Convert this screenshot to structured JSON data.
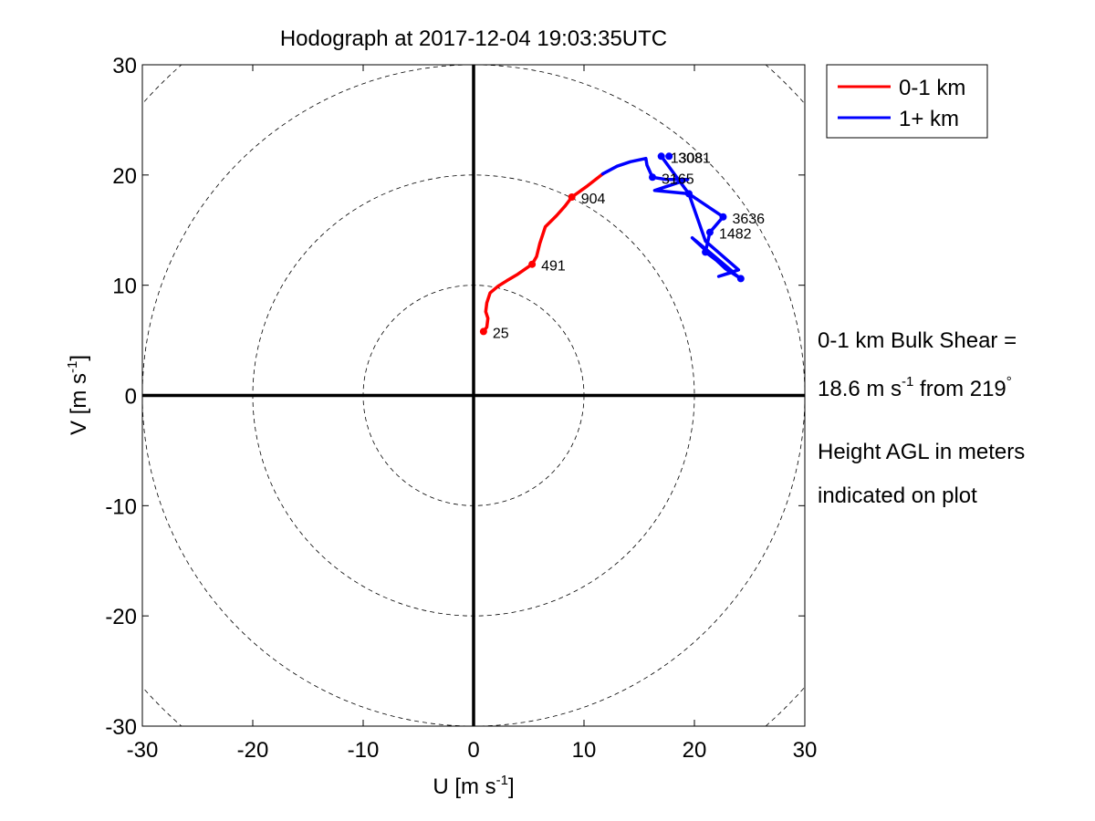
{
  "chart_data": {
    "type": "line",
    "title": "Hodograph at 2017-12-04 19:03:35UTC",
    "xlabel": {
      "main": "U [m s",
      "sup": "-1",
      "close": "]"
    },
    "ylabel": {
      "main": "V [m s",
      "sup": "-1",
      "close": "]"
    },
    "xlim": [
      -30,
      30
    ],
    "ylim": [
      -30,
      30
    ],
    "xticks": [
      "-30",
      "-20",
      "-10",
      "0",
      "10",
      "20",
      "30"
    ],
    "yticks": [
      "-30",
      "-20",
      "-10",
      "0",
      "10",
      "20",
      "30"
    ],
    "xtick_values": [
      -30,
      -20,
      -10,
      0,
      10,
      20,
      30
    ],
    "ytick_values": [
      -30,
      -20,
      -10,
      0,
      10,
      20,
      30
    ],
    "range_rings": [
      10,
      20,
      30,
      40
    ],
    "legend_position": "outside-top-right",
    "series": [
      {
        "name": "0-1 km",
        "color": "#ff0000",
        "points": [
          [
            0.9,
            5.8
          ],
          [
            1.2,
            6.2
          ],
          [
            1.3,
            7.0
          ],
          [
            1.1,
            7.6
          ],
          [
            1.2,
            8.4
          ],
          [
            1.5,
            9.3
          ],
          [
            2.2,
            9.9
          ],
          [
            3.0,
            10.4
          ],
          [
            4.0,
            11.0
          ],
          [
            5.3,
            11.9
          ],
          [
            5.7,
            12.6
          ],
          [
            6.0,
            13.8
          ],
          [
            6.5,
            15.3
          ],
          [
            7.5,
            16.3
          ],
          [
            8.3,
            17.2
          ],
          [
            8.9,
            18.0
          ],
          [
            10.3,
            19.0
          ],
          [
            11.7,
            20.1
          ]
        ]
      },
      {
        "name": "1+ km",
        "color": "#0000ff",
        "points": [
          [
            11.7,
            20.1
          ],
          [
            13.0,
            20.8
          ],
          [
            14.2,
            21.2
          ],
          [
            15.6,
            21.5
          ],
          [
            15.7,
            20.9
          ],
          [
            16.2,
            19.8
          ],
          [
            17.4,
            19.6
          ],
          [
            19.4,
            19.6
          ],
          [
            16.4,
            18.6
          ],
          [
            19.5,
            18.3
          ],
          [
            22.6,
            16.2
          ],
          [
            21.4,
            14.8
          ],
          [
            21.0,
            13.0
          ],
          [
            24.2,
            10.6
          ],
          [
            22.8,
            11.5
          ],
          [
            19.8,
            14.3
          ],
          [
            21.6,
            12.8
          ],
          [
            23.5,
            11.2
          ],
          [
            22.2,
            10.8
          ],
          [
            24.0,
            11.4
          ],
          [
            21.0,
            14.0
          ],
          [
            19.5,
            18.3
          ],
          [
            17.0,
            21.7
          ]
        ]
      }
    ],
    "height_labels": [
      {
        "text": "25",
        "u": 0.9,
        "v": 5.8,
        "color": "#ff0000"
      },
      {
        "text": "491",
        "u": 5.3,
        "v": 11.9,
        "color": "#ff0000"
      },
      {
        "text": "904",
        "u": 8.9,
        "v": 18.0,
        "color": "#ff0000"
      },
      {
        "text": "1308",
        "u": 17.0,
        "v": 21.7,
        "color": "#0000ff"
      },
      {
        "text": "3081",
        "u": 17.7,
        "v": 21.7,
        "color": "#0000ff"
      },
      {
        "text": "3165",
        "u": 16.2,
        "v": 19.8,
        "color": "#0000ff"
      },
      {
        "text": "3636",
        "u": 22.6,
        "v": 16.2,
        "color": "#0000ff"
      },
      {
        "text": "1482",
        "u": 21.4,
        "v": 14.8,
        "color": "#0000ff"
      },
      {
        "text": "",
        "u": 19.5,
        "v": 18.3,
        "color": "#0000ff"
      },
      {
        "text": "",
        "u": 21.0,
        "v": 13.0,
        "color": "#0000ff"
      },
      {
        "text": "",
        "u": 24.2,
        "v": 10.6,
        "color": "#0000ff"
      }
    ]
  },
  "annotation": {
    "shear_line1": "0-1 km Bulk Shear =",
    "shear_value_prefix": "18.6 m s",
    "shear_value_sup": "-1",
    "shear_value_suffix": " from 219",
    "shear_degree": "°",
    "note_line1": "Height AGL in meters",
    "note_line2": "indicated on plot"
  }
}
